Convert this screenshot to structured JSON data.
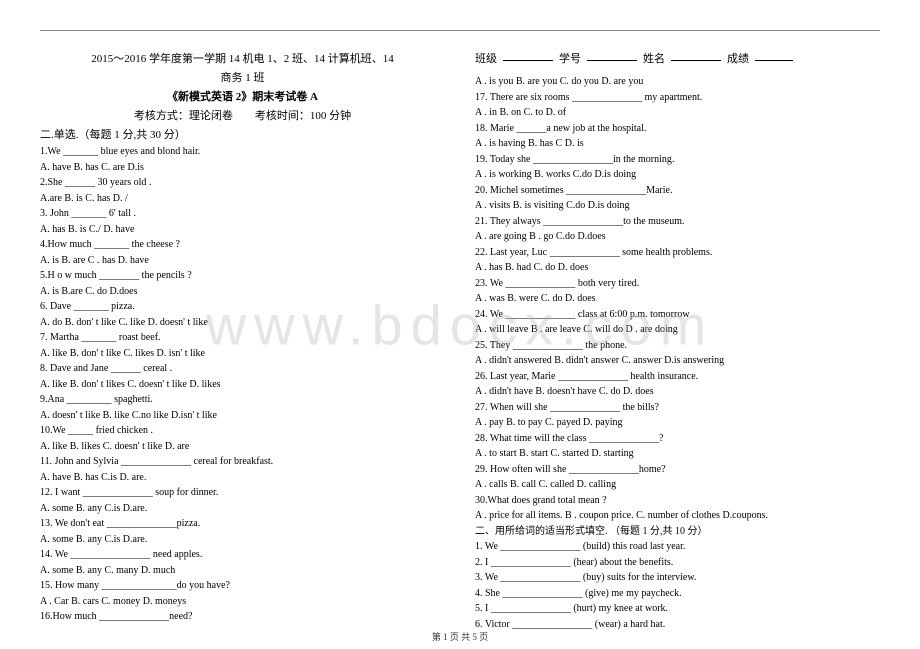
{
  "watermark": "www.bdocx.com",
  "footer": "第 1 页 共 5 页",
  "left": {
    "title1": "2015～2016 学年度第一学期 14 机电 1、2 班、14 计算机班、14",
    "title2": "商务 1 班",
    "title3": "《新模式英语 2》期末考试卷 A",
    "title4_a": "考核方式：理论闭卷",
    "title4_b": "考核时间：100 分钟",
    "sectionA": "二.单选.（每题 1 分,共 30 分）",
    "q": [
      {
        "stem": "1.We _______ blue eyes and blond hair.",
        "opts": "   A. have    B. has    C. are     D.is"
      },
      {
        "stem": "2.She ______  30 years   old .",
        "opts": "   A.are      B.  is     C. has     D.  /"
      },
      {
        "stem": "3. John _______ 6' tall .",
        "opts": "   A.   has    B. is      C./   D.  have"
      },
      {
        "stem": "4.How much _______  the cheese ?",
        "opts": "    A. is     B. are       C .  has      D. have"
      },
      {
        "stem": "5.H o w   much  ________  the   pencils ?",
        "opts": "   A. is     B.are     C. do        D.does"
      },
      {
        "stem": "6. Dave  _______  pizza.",
        "opts": "  A. do      B. don' t like   C. like       D. doesn' t like"
      },
      {
        "stem": "7. Martha  _______ roast  beef.",
        "opts": "  A. like   B. don' t like   C. likes    D. isn' t  like"
      },
      {
        "stem": "8. Dave and Jane  ______ cereal .",
        "opts": "   A.  like    B. don' t likes    C. doesn' t like   D. likes"
      },
      {
        "stem": "9.Ana   _________   spaghetti.",
        "opts": "   A.  doesn' t like    B. like    C.no like   D.isn' t like"
      },
      {
        "stem": "10.We  _____  fried chicken .",
        "opts": "   A. like    B. likes       C. doesn' t like   D. are"
      },
      {
        "stem": "11. John and Sylvia ______________ cereal for breakfast.",
        "opts": "A.   have        B. has      C.is              D. are."
      },
      {
        "stem": "12. I want ______________ soup for dinner.",
        "opts": "A.   some        B. any      C.is              D.are."
      },
      {
        "stem": "13. We don't eat ______________pizza.",
        "opts": "A.   some        B. any      C.is              D.are."
      },
      {
        "stem": "14. We ________________ need apples.",
        "opts": "A.   some        B. any      C. many         D.   much"
      },
      {
        "stem": "15. How many _______________do you have?",
        "opts": "A .  Car        B.   cars      C.  money     D. moneys"
      },
      {
        "stem": "16.How much  ______________need?",
        "opts": ""
      }
    ]
  },
  "right": {
    "hdr_a": "班级",
    "hdr_b": "学号",
    "hdr_c": "姓名",
    "hdr_d": "成绩",
    "q": [
      {
        "stem": "A .  is you       B.  are you        C.    do you    D. are you",
        "opts": ""
      },
      {
        "stem": "17. There are six rooms ______________  my apartment.",
        "opts": "A .   in        B.   on        C. to           D. of"
      },
      {
        "stem": "18. Marie  ______a new job at the hospital.",
        "opts": "A .  is having       B.   has       C            D. is"
      },
      {
        "stem": "19. Today she ________________in the morning.",
        "opts": "A .  is working      B.    works       C.do         D.is doing"
      },
      {
        "stem": "20. Michel sometimes ________________Marie.",
        "opts": "A .   visits       B.   is visiting      C.do            D.is doing"
      },
      {
        "stem": "21. They always ________________to the museum.",
        "opts": "A .  are going       B .   go       C.do            D.does"
      },
      {
        "stem": "22. Last year, Luc ______________ some health problems.",
        "opts": "A .  has       B.   had       C. do         D. does"
      },
      {
        "stem": "23. We ______________ both very tired.",
        "opts": "A .   was      B.   were       C. do         D. does"
      },
      {
        "stem": "24. We ______________ class at 6:00 p.m. tomorrow",
        "opts": "A .   will leave       B .  are leave       C. will do       D . are doing"
      },
      {
        "stem": "25. They ______________  the phone.",
        "opts": "A .   didn't answered       B.   didn't answer     C. answer         D.is answering"
      },
      {
        "stem": "26. Last year, Marie ______________ health insurance.",
        "opts": "A .    didn't have           B.    doesn't have         C. do          D. does"
      },
      {
        "stem": "27. When will she ______________ the bills?",
        "opts": "A .    pay           B.  to pay         C. payed            D. paying"
      },
      {
        "stem": "28. What time will the class ______________?",
        "opts": "A .  to start       B.   start        C. started            D. starting"
      },
      {
        "stem": "29. How often will she ______________home?",
        "opts": "A .  calls       B.   call          C. called            D. calling"
      },
      {
        "stem": "30.What does grand total mean ?",
        "opts": "A . price for all items.      B . coupon price.     C. number of clothes   D.coupons."
      }
    ],
    "sectionB": "二、用所给词的适当形式填空.  （每题 1 分,共 10 分）",
    "fill": [
      "1. We ________________ (build) this road last year.",
      "2. I ________________ (hear) about the benefits.",
      "3. We ________________ (buy) suits for the interview.",
      "4. She ________________ (give) me my paycheck.",
      "5. I ________________ (hurt) my knee at work.",
      "6. Victor ________________ (wear) a hard hat."
    ]
  }
}
